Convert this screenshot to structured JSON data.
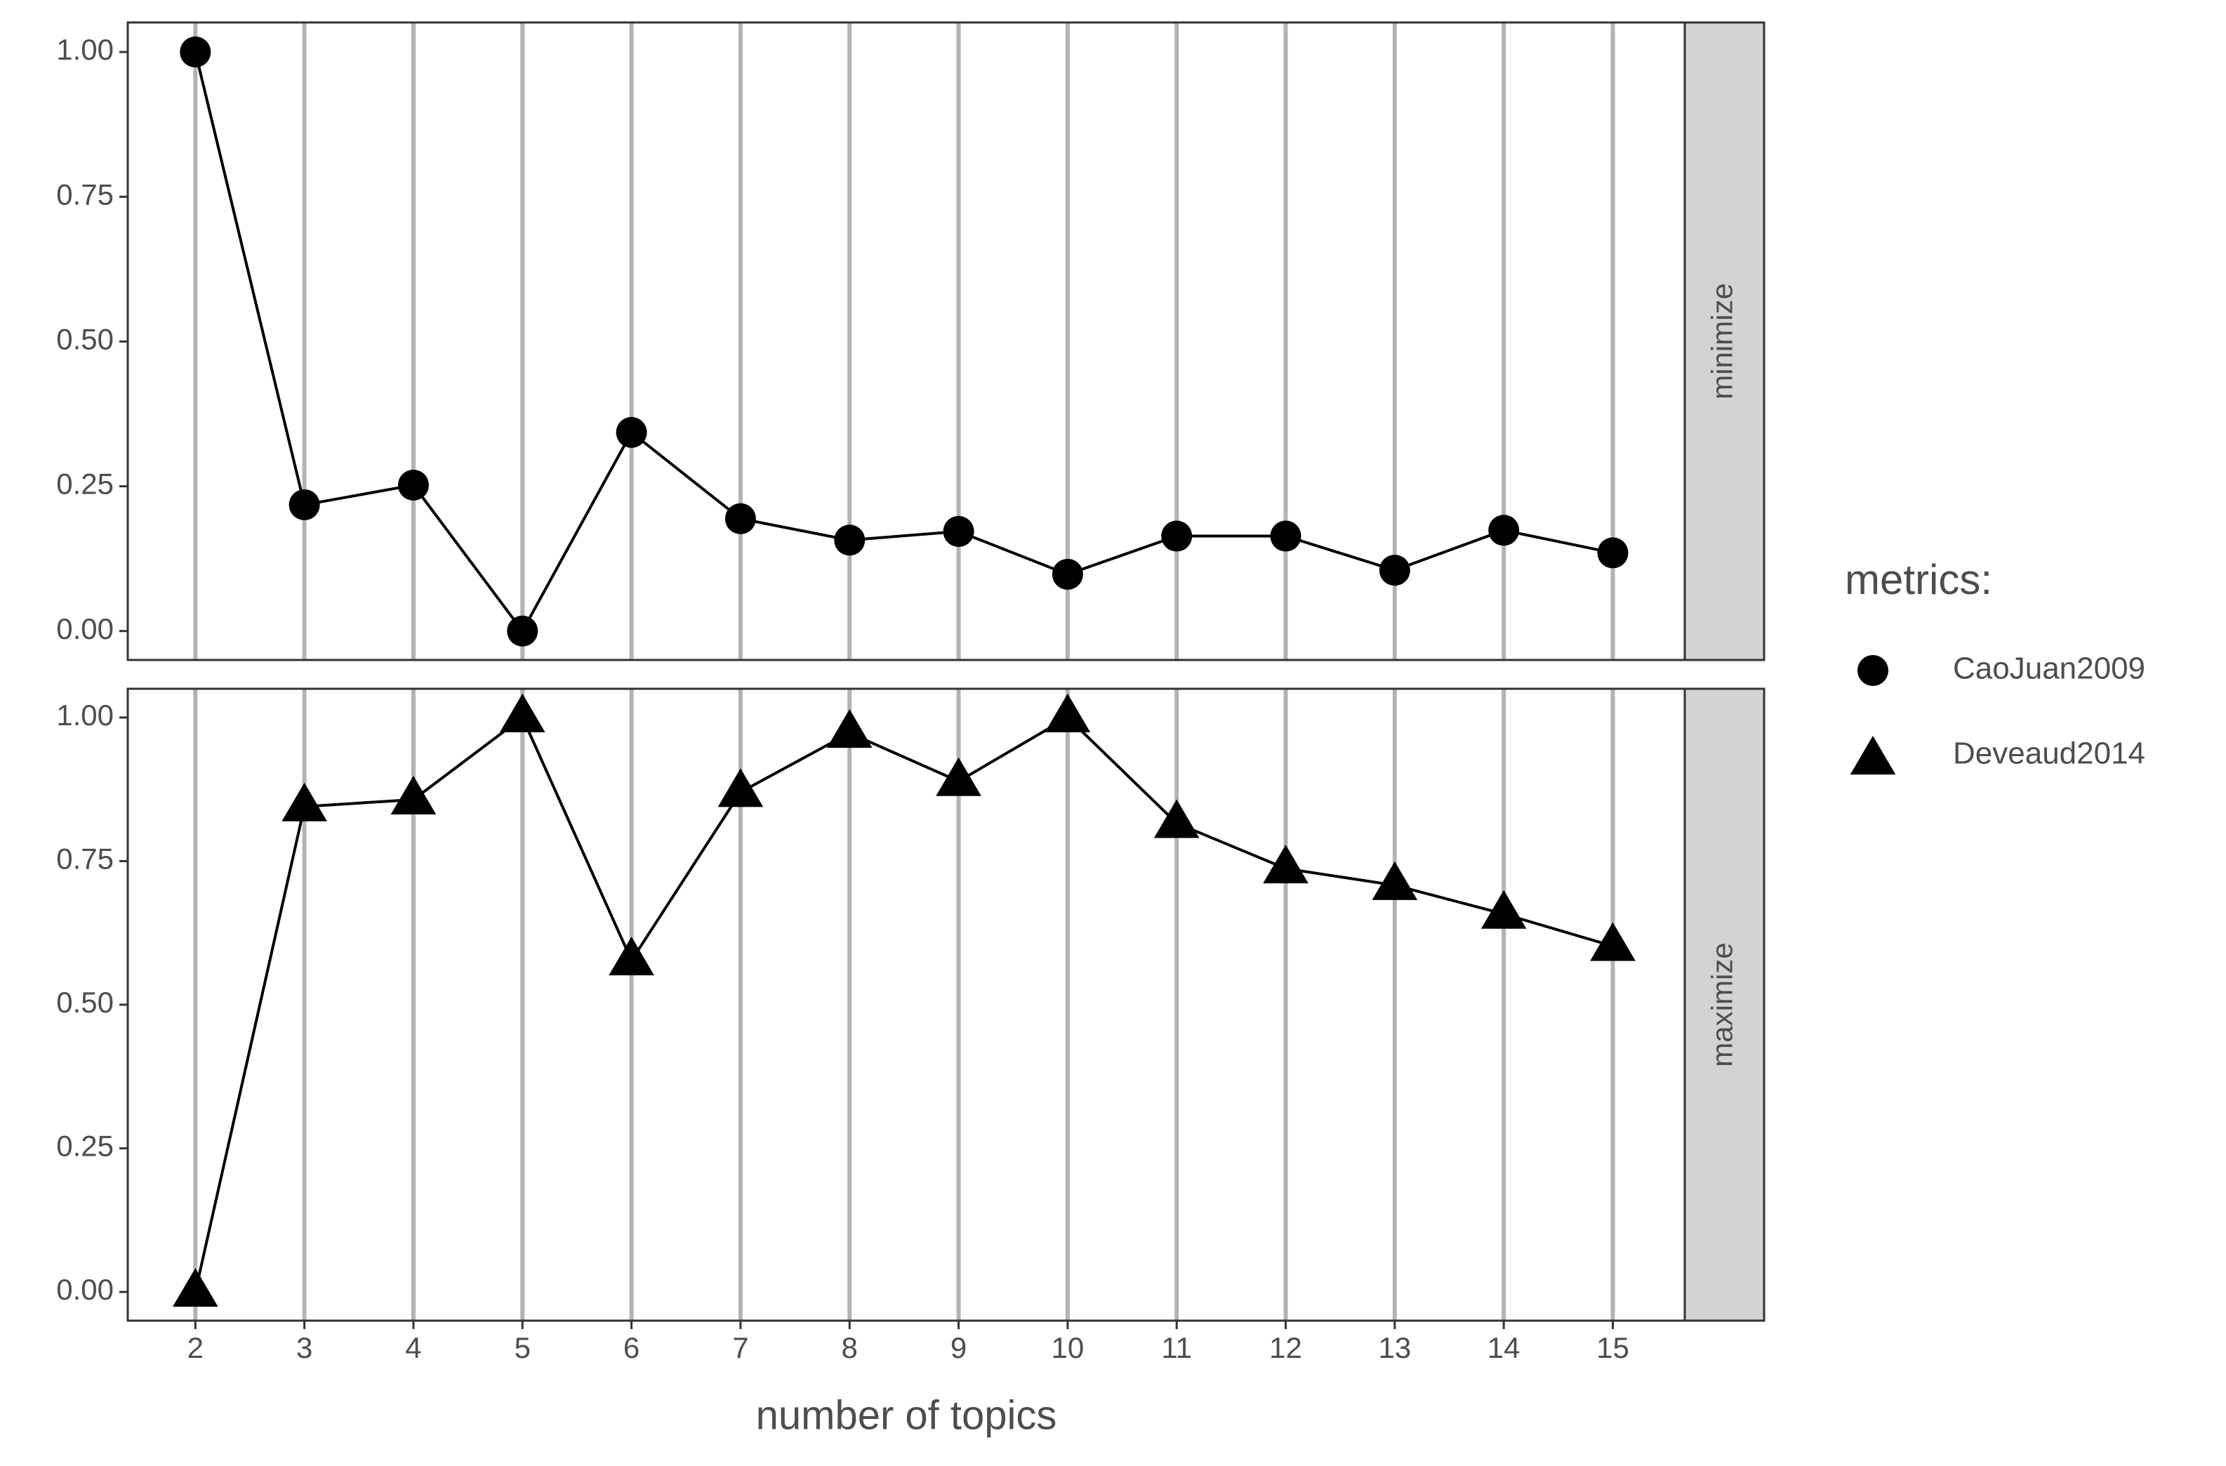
{
  "chart_data": [
    {
      "type": "line",
      "strip": "minimize",
      "legend_title": "metrics:",
      "x": [
        2,
        3,
        4,
        5,
        6,
        7,
        8,
        9,
        10,
        11,
        12,
        13,
        14,
        15
      ],
      "series": [
        {
          "name": "CaoJuan2009",
          "color": "#000000",
          "marker": "circle",
          "values": [
            1.0,
            0.218,
            0.252,
            0.0,
            0.343,
            0.194,
            0.157,
            0.172,
            0.098,
            0.164,
            0.164,
            0.105,
            0.174,
            0.135
          ]
        }
      ],
      "xlim": [
        1.38,
        15.66
      ],
      "xticks": [
        2,
        3,
        4,
        5,
        6,
        7,
        8,
        9,
        10,
        11,
        12,
        13,
        14,
        15
      ],
      "ylim": [
        -0.05,
        1.051
      ],
      "yticks": [
        {
          "value": 0,
          "label": "0.00"
        },
        {
          "value": 0.25,
          "label": "0.25"
        },
        {
          "value": 0.5,
          "label": "0.50"
        },
        {
          "value": 0.75,
          "label": "0.75"
        },
        {
          "value": 1,
          "label": "1.00"
        }
      ],
      "grid": "x"
    },
    {
      "type": "line",
      "strip": "maximize",
      "x_label": "number of topics",
      "x": [
        2,
        3,
        4,
        5,
        6,
        7,
        8,
        9,
        10,
        11,
        12,
        13,
        14,
        15
      ],
      "series": [
        {
          "name": "Deveaud2014",
          "color": "#000000",
          "marker": "triangle",
          "values": [
            0.0,
            0.845,
            0.857,
            1.0,
            0.577,
            0.87,
            0.973,
            0.889,
            1.0,
            0.816,
            0.737,
            0.708,
            0.658,
            0.602
          ]
        }
      ],
      "xlim": [
        1.38,
        15.66
      ],
      "xticks": [
        2,
        3,
        4,
        5,
        6,
        7,
        8,
        9,
        10,
        11,
        12,
        13,
        14,
        15
      ],
      "ylim": [
        -0.05,
        1.05
      ],
      "yticks": [
        {
          "value": 0,
          "label": "0.00"
        },
        {
          "value": 0.25,
          "label": "0.25"
        },
        {
          "value": 0.5,
          "label": "0.50"
        },
        {
          "value": 0.75,
          "label": "0.75"
        },
        {
          "value": 1,
          "label": "1.00"
        }
      ],
      "grid": "x"
    }
  ]
}
